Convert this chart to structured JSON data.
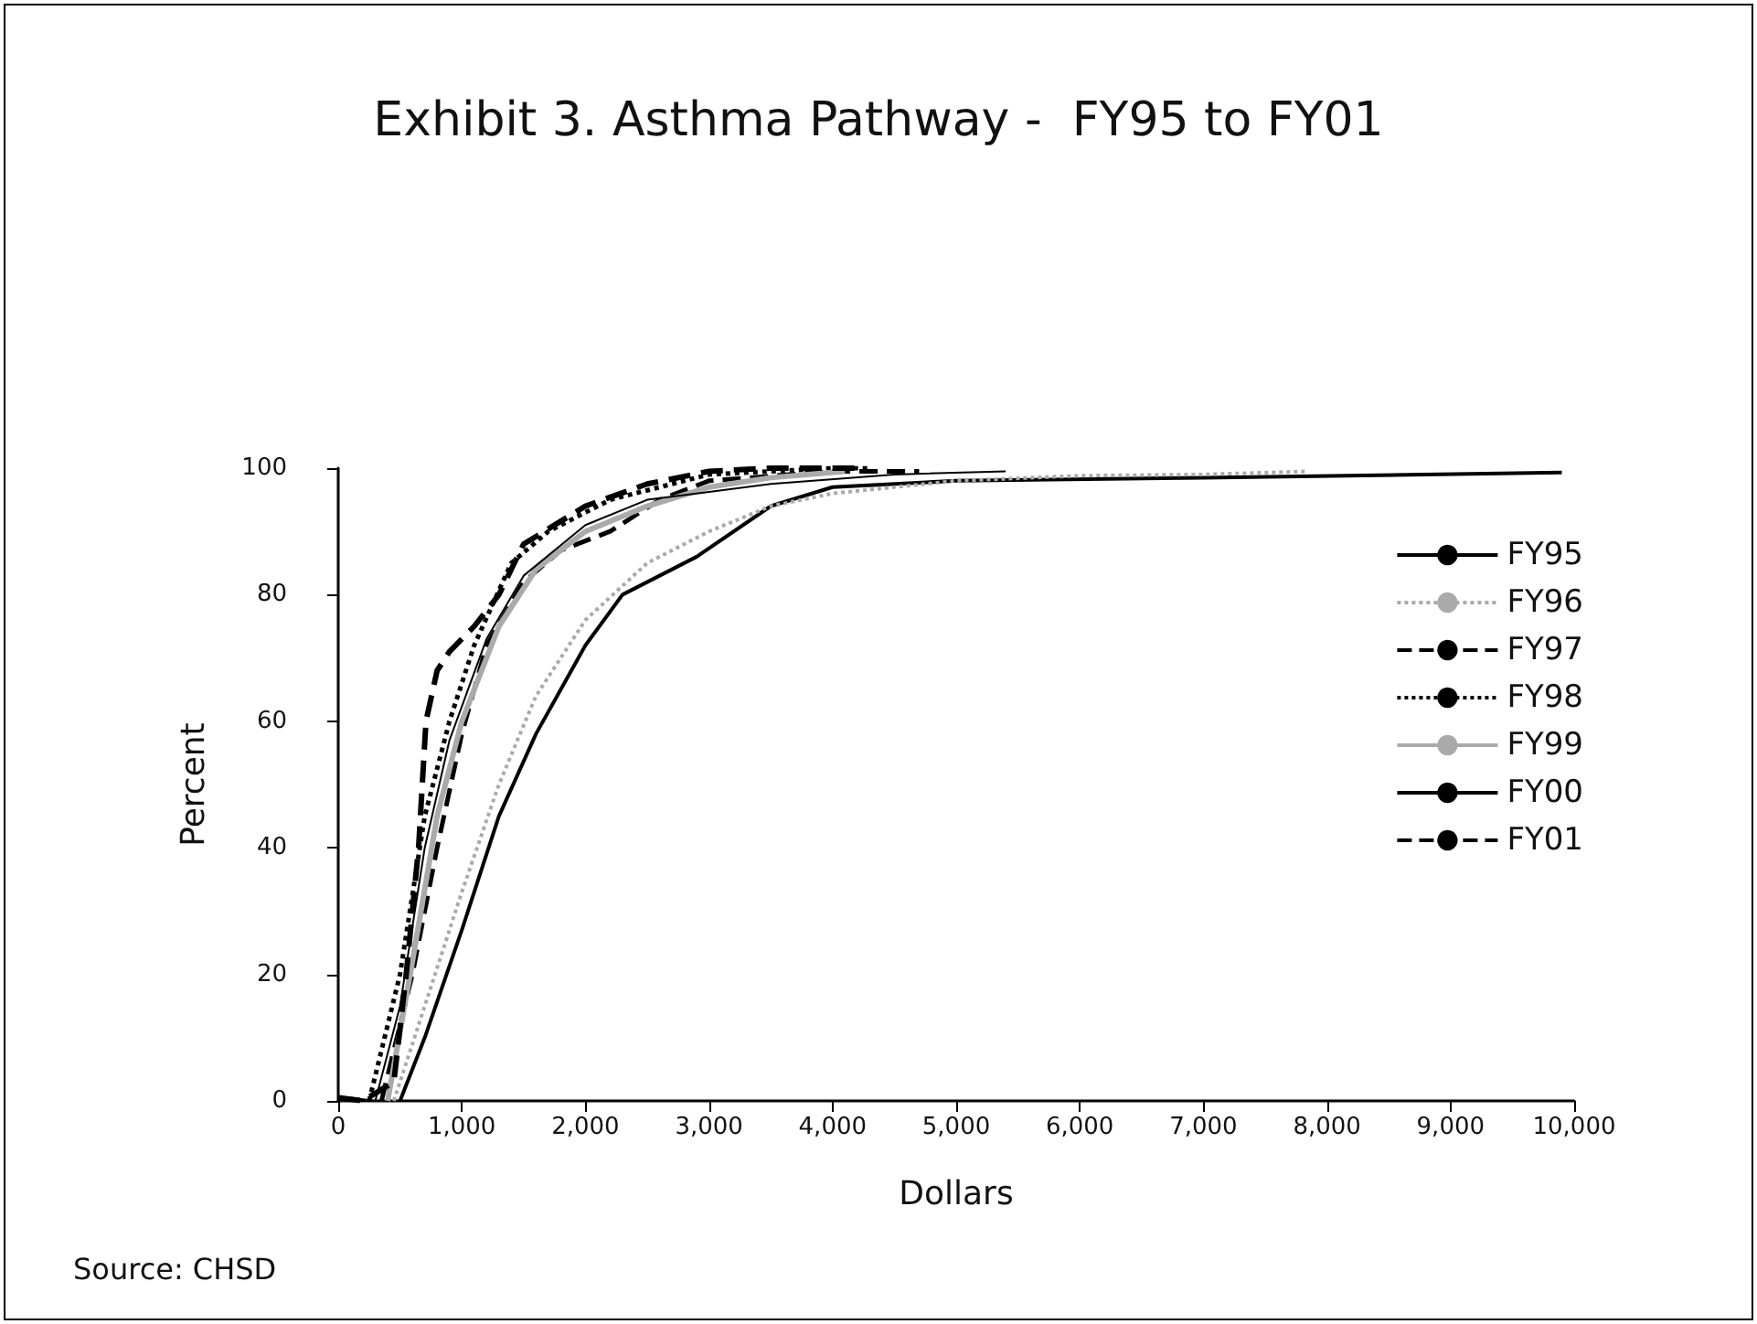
{
  "chart_data": {
    "type": "line",
    "title": "Exhibit 3. Asthma Pathway -  FY95 to FY01",
    "xlabel": "Dollars",
    "ylabel": "Percent",
    "annotations": [
      "Source: CHSD"
    ],
    "xlim": [
      0,
      10000
    ],
    "ylim": [
      0,
      100
    ],
    "xticks": [
      0,
      {
        "value": 1000,
        "label": "1,000"
      },
      {
        "value": 2000,
        "label": "2,000"
      },
      {
        "value": 3000,
        "label": "3,000"
      },
      {
        "value": 4000,
        "label": "4,000"
      },
      {
        "value": 5000,
        "label": "5,000"
      },
      {
        "value": 6000,
        "label": "6,000"
      },
      {
        "value": 7000,
        "label": "7,000"
      },
      {
        "value": 8000,
        "label": "8,000"
      },
      {
        "value": 9000,
        "label": "9,000"
      },
      {
        "value": 10000,
        "label": "10,000"
      }
    ],
    "yticks": [
      0,
      20,
      40,
      60,
      80,
      100
    ],
    "grid": false,
    "legend": "right",
    "marker": "none",
    "series": [
      {
        "name": "FY95",
        "color": "#000000",
        "line_style": "solid",
        "x": [
          500,
          700,
          1000,
          1300,
          1600,
          2000,
          2300,
          2900,
          3500,
          4000,
          5000,
          7000,
          9900
        ],
        "values": [
          0,
          10,
          27,
          45,
          58,
          72,
          80,
          86,
          94,
          97,
          98,
          98.5,
          99.3
        ]
      },
      {
        "name": "FY96",
        "color": "#aaaaaa",
        "line_style": "dotted",
        "x": [
          450,
          700,
          1000,
          1300,
          1600,
          2000,
          2500,
          3000,
          3500,
          4000,
          5000,
          6000,
          7000,
          7850
        ],
        "values": [
          0,
          15,
          33,
          50,
          64,
          76,
          85,
          90,
          94,
          96,
          98,
          98.8,
          99,
          99.5
        ]
      },
      {
        "name": "FY97",
        "color": "#000000",
        "line_style": "dashed",
        "x": [
          350,
          600,
          800,
          1000,
          1200,
          1500,
          1800,
          2200,
          2600,
          3000,
          4000,
          4700
        ],
        "values": [
          0,
          20,
          40,
          58,
          72,
          82,
          87,
          90,
          95,
          98,
          99.5,
          99.5
        ]
      },
      {
        "name": "FY98",
        "color": "#000000",
        "line_style": "dotted",
        "x": [
          250,
          500,
          700,
          900,
          1100,
          1400,
          1700,
          2200,
          3000,
          4000,
          4300
        ],
        "values": [
          0,
          20,
          45,
          60,
          72,
          85,
          90,
          95,
          99,
          100,
          100
        ]
      },
      {
        "name": "FY99",
        "color": "#aaaaaa",
        "line_style": "solid",
        "x": [
          400,
          600,
          800,
          1000,
          1300,
          1600,
          2000,
          2500,
          3000,
          3500,
          4100
        ],
        "values": [
          0,
          22,
          45,
          60,
          75,
          84,
          90,
          94,
          97,
          98.5,
          99.5
        ]
      },
      {
        "name": "FY00",
        "color": "#000000",
        "line_style": "solid",
        "x": [
          100,
          300,
          500,
          700,
          900,
          1200,
          1500,
          2000,
          2500,
          3500,
          4500,
          5400
        ],
        "values": [
          0.5,
          0,
          15,
          40,
          57,
          73,
          83,
          91,
          95,
          97.5,
          99,
          99.5
        ]
      },
      {
        "name": "FY01",
        "color": "#000000",
        "line_style": "dashed",
        "x": [
          0,
          200,
          450,
          550,
          650,
          710,
          800,
          900,
          1100,
          1300,
          1500,
          2000,
          2500,
          3000,
          3500,
          4200
        ],
        "values": [
          0.5,
          0,
          3,
          20,
          40,
          60,
          68,
          71,
          75,
          80,
          88,
          94,
          97.5,
          99.5,
          100,
          100
        ]
      }
    ]
  }
}
